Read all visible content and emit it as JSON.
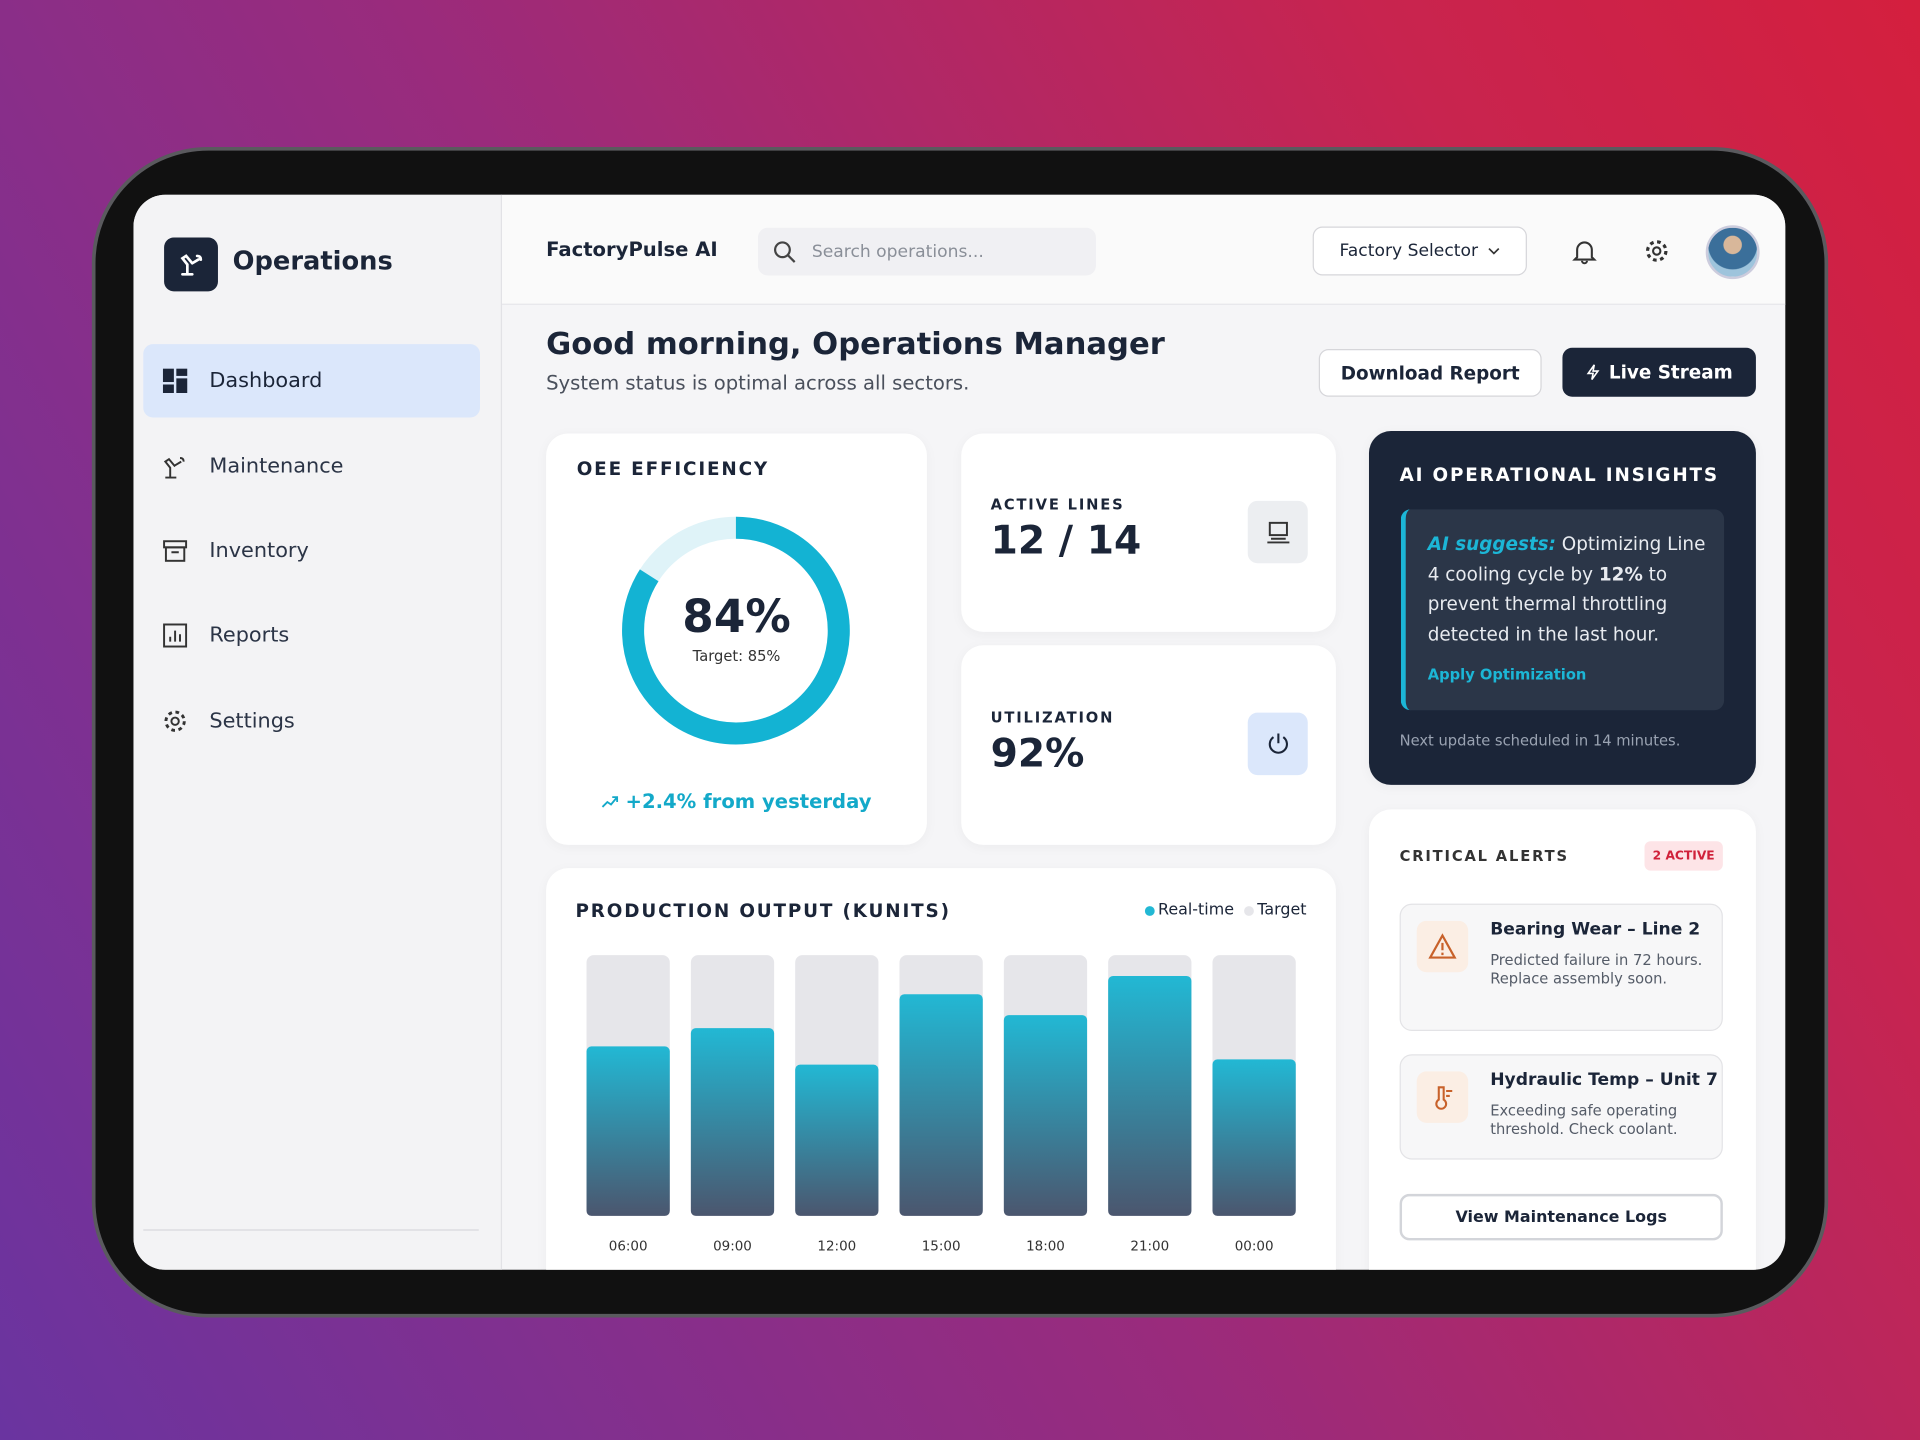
{
  "sidebar": {
    "title": "Operations",
    "nav": [
      "Dashboard",
      "Maintenance",
      "Inventory",
      "Reports",
      "Settings"
    ]
  },
  "header": {
    "brand": "FactoryPulse AI",
    "search_placeholder": "Search operations...",
    "factory_selector": "Factory Selector"
  },
  "greeting": {
    "title": "Good morning, Operations Manager",
    "subtitle": "System status is optimal across all sectors.",
    "buttons": [
      "Download Report",
      "Live Stream"
    ]
  },
  "oee": {
    "label": "OEE EFFICIENCY",
    "value": 84,
    "value_label": "84%",
    "target": "Target: 85%",
    "trend": "+2.4% from yesterday"
  },
  "active_lines": {
    "label": "ACTIVE LINES",
    "value": "12 / 14"
  },
  "utilization": {
    "label": "UTILIZATION",
    "value": "92%"
  },
  "insights": {
    "title": "AI OPERATIONAL INSIGHTS",
    "prefix": "AI suggests:",
    "text_parts": [
      " Optimizing Line 4 cooling cycle by ",
      "12%",
      " to prevent thermal throttling detected in the last hour."
    ],
    "action": "Apply Optimization",
    "footer": "Next update scheduled in 14 minutes."
  },
  "alerts": {
    "title": "CRITICAL ALERTS",
    "badge": "2 ACTIVE",
    "items": [
      {
        "title": "Bearing Wear – Line 2",
        "text": "Predicted failure in 72 hours. Replace assembly soon."
      },
      {
        "title": "Hydraulic Temp – Unit 7",
        "text": "Exceeding safe operating threshold. Check coolant."
      }
    ],
    "button": "View Maintenance Logs"
  },
  "chart_data": {
    "type": "bar",
    "title": "PRODUCTION OUTPUT (KUNITS)",
    "categories": [
      "06:00",
      "09:00",
      "12:00",
      "15:00",
      "18:00",
      "21:00",
      "00:00"
    ],
    "series": [
      {
        "name": "Real-time",
        "color": "#22b8d4",
        "values": [
          65,
          72,
          58,
          85,
          77,
          92,
          60
        ]
      },
      {
        "name": "Target",
        "color": "#e6e6ea",
        "values": [
          100,
          100,
          100,
          100,
          100,
          100,
          100
        ]
      }
    ],
    "ylim": [
      0,
      100
    ]
  }
}
